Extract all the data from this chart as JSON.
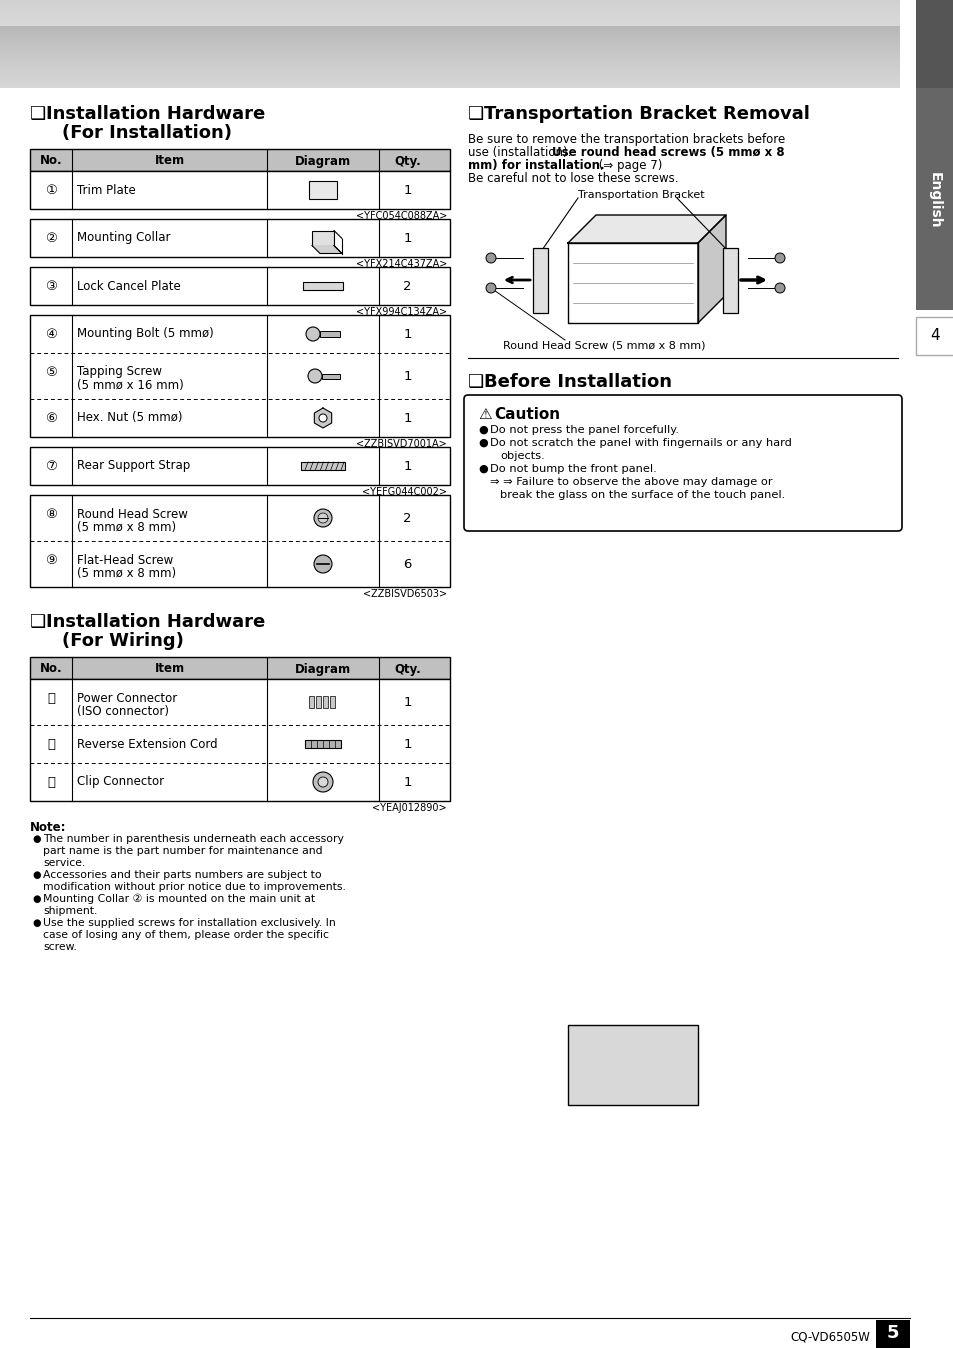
{
  "page_bg": "#ffffff",
  "title_install1": "Installation Hardware",
  "title_install1b": "(For Installation)",
  "title_transport": "Transportation Bracket Removal",
  "title_wiring1": "Installation Hardware",
  "title_wiring1b": "(For Wiring)",
  "title_before": "Before Installation",
  "trans_text1": "Be sure to remove the transportation brackets before",
  "trans_text2": "use (installation). ",
  "trans_text2b": "Use round head screws (5 mmø x 8",
  "trans_text3": "mm) for installation.",
  "trans_text3b": " (⇒ page 7)",
  "trans_text4": "Be careful not to lose these screws.",
  "trans_bracket_label": "Transportation Bracket",
  "trans_screw_label": "Round Head Screw (5 mmø x 8 mm)",
  "caution_title": "Caution",
  "caution_b1": "Do not press the panel forcefully.",
  "caution_b2a": "Do not scratch the panel with fingernails or any hard",
  "caution_b2b": "objects.",
  "caution_b3": "Do not bump the front panel.",
  "caution_b4a": "⇒ Failure to observe the above may damage or",
  "caution_b4b": "break the glass on the surface of the touch panel.",
  "note_title": "Note:",
  "note_b1a": "The number in parenthesis underneath each accessory",
  "note_b1b": "part name is the part number for maintenance and",
  "note_b1c": "service.",
  "note_b2a": "Accessories and their parts numbers are subject to",
  "note_b2b": "modification without prior notice due to improvements.",
  "note_b3a": "Mounting Collar ② is mounted on the main unit at",
  "note_b3b": "shipment.",
  "note_b4a": "Use the supplied screws for installation exclusively. In",
  "note_b4b": "case of losing any of them, please order the specific",
  "note_b4c": "screw.",
  "footer_text": "CQ-VD6505W",
  "page_num": "5",
  "tab_headers": [
    "No.",
    "Item",
    "Diagram",
    "Qty."
  ],
  "install_rows": [
    {
      "no": "①",
      "item": "Trim Plate",
      "item2": "",
      "code": "<YFC054C088ZA>",
      "qty": "1",
      "group_end": true
    },
    {
      "no": "②",
      "item": "Mounting Collar",
      "item2": "",
      "code": "<YFX214C437ZA>",
      "qty": "1",
      "group_end": true
    },
    {
      "no": "③",
      "item": "Lock Cancel Plate",
      "item2": "",
      "code": "<YFX994C134ZA>",
      "qty": "2",
      "group_end": true
    },
    {
      "no": "④",
      "item": "Mounting Bolt (5 mmø)",
      "item2": "",
      "code": "",
      "qty": "1",
      "group_end": false
    },
    {
      "no": "⑤",
      "item": "Tapping Screw",
      "item2": "(5 mmø x 16 mm)",
      "code": "",
      "qty": "1",
      "group_end": false
    },
    {
      "no": "⑥",
      "item": "Hex. Nut (5 mmø)",
      "item2": "",
      "code": "<ZZBISVD7001A>",
      "qty": "1",
      "group_end": true
    },
    {
      "no": "⑦",
      "item": "Rear Support Strap",
      "item2": "",
      "code": "<YEFG044C002>",
      "qty": "1",
      "group_end": true
    },
    {
      "no": "⑧",
      "item": "Round Head Screw",
      "item2": "(5 mmø x 8 mm)",
      "code": "",
      "qty": "2",
      "group_end": false
    },
    {
      "no": "⑨",
      "item": "Flat-Head Screw",
      "item2": "(5 mmø x 8 mm)",
      "code": "<ZZBISVD6503>",
      "qty": "6",
      "group_end": true
    }
  ],
  "wiring_rows": [
    {
      "no": "⑪",
      "item": "Power Connector",
      "item2": "(ISO connector)",
      "code": "",
      "qty": "1",
      "group_end": false
    },
    {
      "no": "⑫",
      "item": "Reverse Extension Cord",
      "item2": "",
      "code": "",
      "qty": "1",
      "group_end": false
    },
    {
      "no": "⑬",
      "item": "Clip Connector",
      "item2": "",
      "code": "<YEAJ012890>",
      "qty": "1",
      "group_end": true
    }
  ]
}
